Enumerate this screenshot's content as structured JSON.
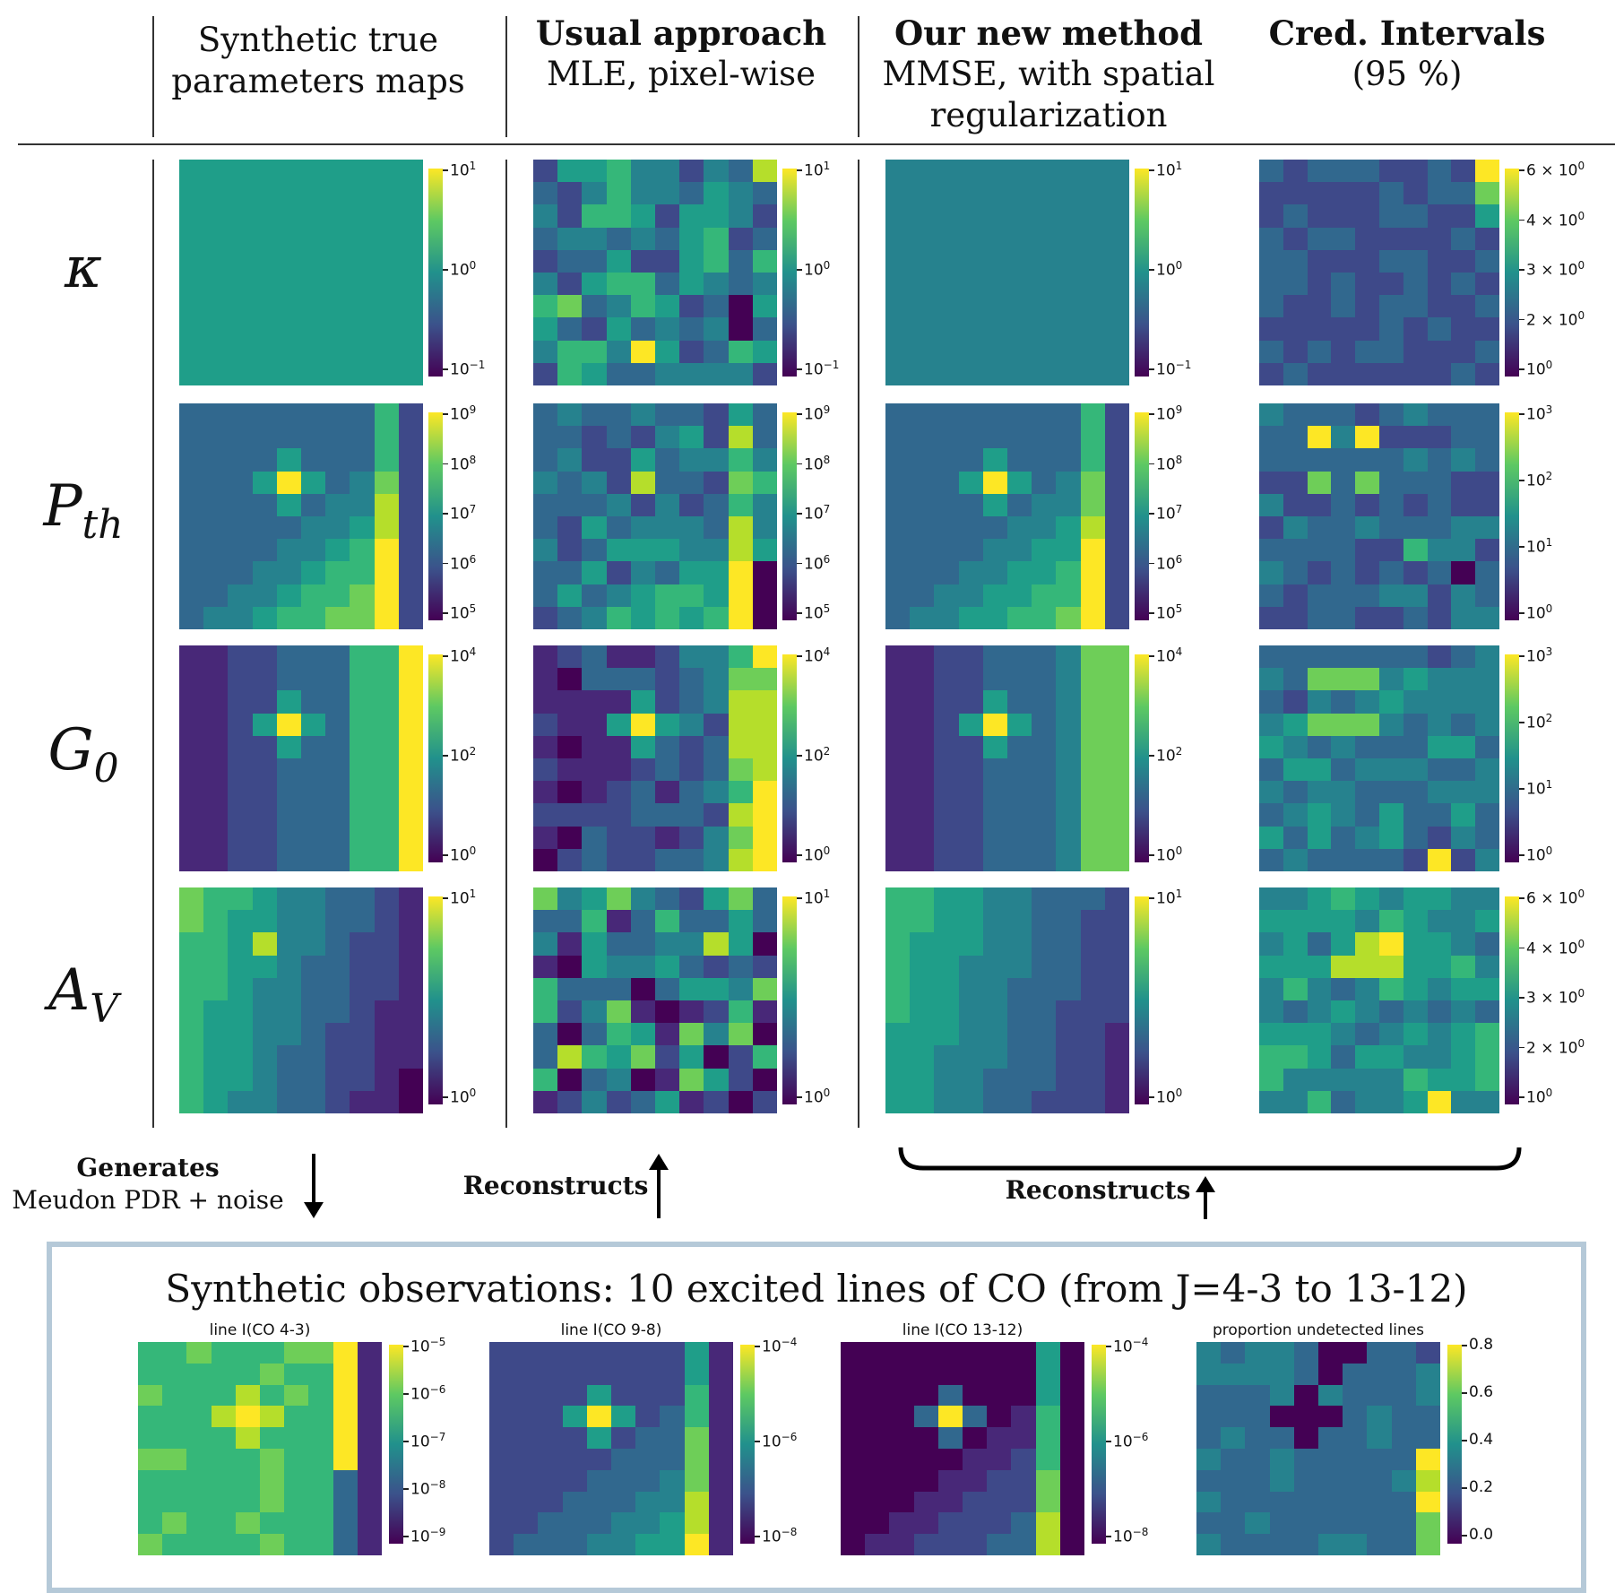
{
  "headers": {
    "col1": [
      "Synthetic true",
      "parameters maps"
    ],
    "col2_bold": "Usual approach",
    "col2": "MLE, pixel-wise",
    "col3_bold": "Our new method",
    "col3": [
      "MMSE, with spatial",
      "regularization"
    ],
    "col4_bold": "Cred. Intervals",
    "col4": "(95 %)"
  },
  "rows": [
    {
      "symbol": "κ",
      "sub": ""
    },
    {
      "symbol": "P",
      "sub": "th"
    },
    {
      "symbol": "G",
      "sub": "0"
    },
    {
      "symbol": "A",
      "sub": "V"
    }
  ],
  "colorbar_ticks": {
    "kappa_main": [
      [
        "10",
        "1"
      ],
      [
        "10",
        "0"
      ],
      [
        "10",
        "−1"
      ]
    ],
    "kappa_ci": [
      [
        "6 × 10",
        "0"
      ],
      [
        "4 × 10",
        "0"
      ],
      [
        "3 × 10",
        "0"
      ],
      [
        "2 × 10",
        "0"
      ],
      [
        "10",
        "0"
      ]
    ],
    "pth_main": [
      [
        "10",
        "9"
      ],
      [
        "10",
        "8"
      ],
      [
        "10",
        "7"
      ],
      [
        "10",
        "6"
      ],
      [
        "10",
        "5"
      ]
    ],
    "pth_ci": [
      [
        "10",
        "3"
      ],
      [
        "10",
        "2"
      ],
      [
        "10",
        "1"
      ],
      [
        "10",
        "0"
      ]
    ],
    "g0_main": [
      [
        "10",
        "4"
      ],
      [
        "10",
        "2"
      ],
      [
        "10",
        "0"
      ]
    ],
    "g0_ci": [
      [
        "10",
        "3"
      ],
      [
        "10",
        "2"
      ],
      [
        "10",
        "1"
      ],
      [
        "10",
        "0"
      ]
    ],
    "av_main": [
      [
        "10",
        "1"
      ],
      [
        "10",
        "0"
      ]
    ],
    "av_ci": [
      [
        "6 × 10",
        "0"
      ],
      [
        "4 × 10",
        "0"
      ],
      [
        "3 × 10",
        "0"
      ],
      [
        "2 × 10",
        "0"
      ],
      [
        "10",
        "0"
      ]
    ]
  },
  "arrows": {
    "generates_bold": "Generates",
    "generates_sub": "Meudon PDR + noise",
    "reconstructs_left": "Reconstructs",
    "reconstructs_right": "Reconstructs"
  },
  "observations": {
    "title": "Synthetic observations: 10 excited lines of CO (from J=4-3 to 13-12)",
    "panels": [
      {
        "title": "line I(CO 4-3)",
        "ticks": [
          [
            "10",
            "−5"
          ],
          [
            "10",
            "−6"
          ],
          [
            "10",
            "−7"
          ],
          [
            "10",
            "−8"
          ],
          [
            "10",
            "−9"
          ]
        ]
      },
      {
        "title": "line I(CO 9-8)",
        "ticks": [
          [
            "10",
            "−4"
          ],
          [
            "10",
            "−6"
          ],
          [
            "10",
            "−8"
          ]
        ]
      },
      {
        "title": "line I(CO 13-12)",
        "ticks": [
          [
            "10",
            "−4"
          ],
          [
            "10",
            "−6"
          ],
          [
            "10",
            "−8"
          ]
        ]
      },
      {
        "title": "proportion undetected lines",
        "ticks": [
          [
            "0.8",
            ""
          ],
          [
            "0.6",
            ""
          ],
          [
            "0.4",
            ""
          ],
          [
            "0.2",
            ""
          ],
          [
            "0.0",
            ""
          ]
        ]
      }
    ]
  },
  "colors": {
    "viridis": [
      "#440154",
      "#482878",
      "#3e4989",
      "#31688e",
      "#26828e",
      "#1f9e89",
      "#35b779",
      "#6ece58",
      "#b5de2b",
      "#fde725"
    ],
    "frame": "#b5c9d8"
  }
}
